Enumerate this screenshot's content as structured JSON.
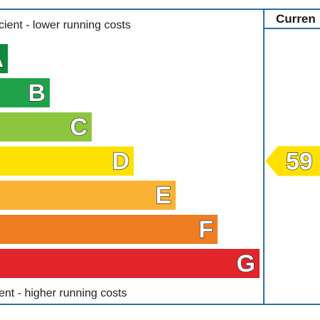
{
  "header": {
    "current_label": "Curren"
  },
  "captions": {
    "top": "cient - lower running costs",
    "bottom": "ent - higher running costs"
  },
  "chart_data": {
    "type": "bar",
    "categories": [
      "A",
      "B",
      "C",
      "D",
      "E",
      "F",
      "G"
    ],
    "colors": [
      "#0e8a3b",
      "#1fa34a",
      "#8cc63f",
      "#ffe100",
      "#f9b233",
      "#ef7d22",
      "#e2242b"
    ],
    "current": {
      "value": "59",
      "band": "D",
      "color": "#ffe100"
    }
  }
}
